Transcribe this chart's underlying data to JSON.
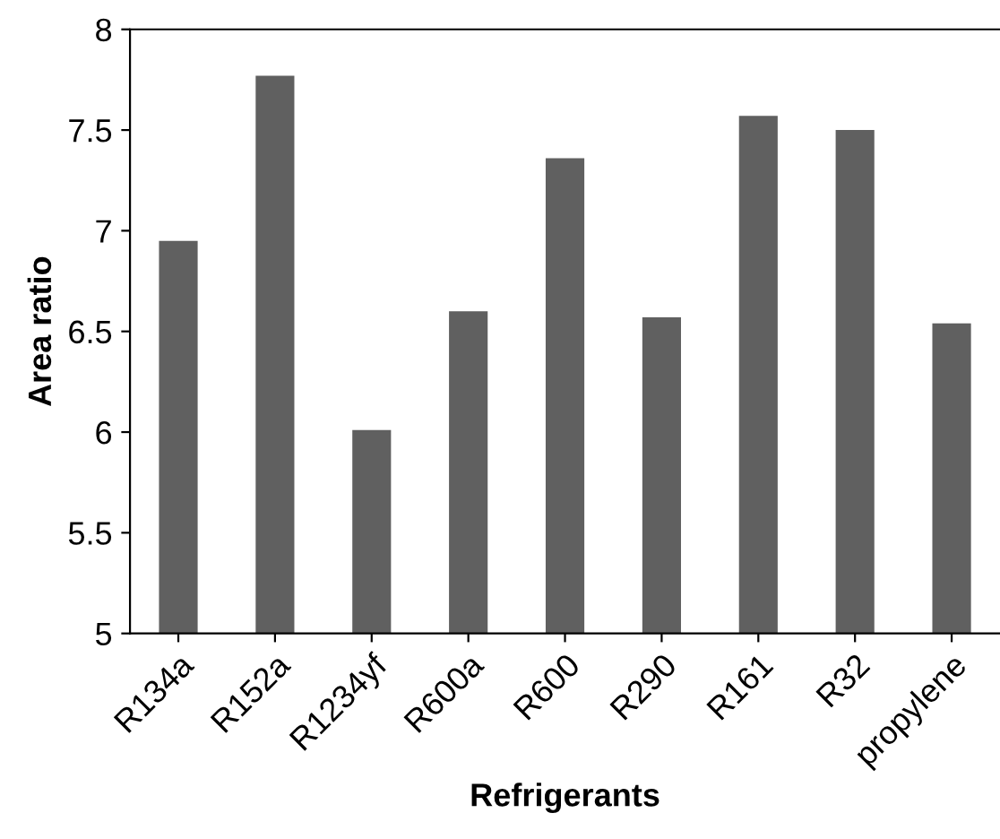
{
  "chart_data": {
    "type": "bar",
    "xlabel": "Refrigerants",
    "ylabel": "Area ratio",
    "categories": [
      "R134a",
      "R152a",
      "R1234yf",
      "R600a",
      "R600",
      "R290",
      "R161",
      "R32",
      "propylene"
    ],
    "values": [
      6.95,
      7.77,
      6.01,
      6.6,
      7.36,
      6.57,
      7.57,
      7.5,
      6.54
    ],
    "color": "#606060",
    "ylim": [
      5,
      8
    ],
    "yticks": [
      5,
      5.5,
      6,
      6.5,
      7,
      7.5,
      8
    ],
    "grid": false
  }
}
